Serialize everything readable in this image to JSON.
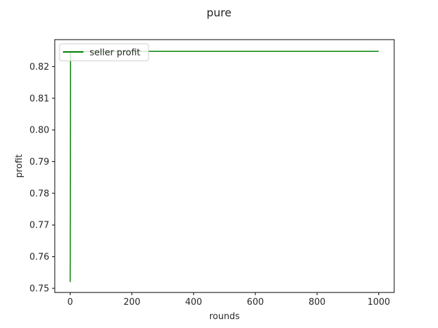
{
  "chart_data": {
    "type": "line",
    "title": "pure",
    "xlabel": "rounds",
    "ylabel": "profit",
    "xlim": [
      -50,
      1050
    ],
    "ylim": [
      0.7487,
      0.8285
    ],
    "xticks": [
      0,
      200,
      400,
      600,
      800,
      1000
    ],
    "xtick_labels": [
      "0",
      "200",
      "400",
      "600",
      "800",
      "1000"
    ],
    "yticks": [
      0.75,
      0.76,
      0.77,
      0.78,
      0.79,
      0.8,
      0.81,
      0.82
    ],
    "ytick_labels": [
      "0.75",
      "0.76",
      "0.77",
      "0.78",
      "0.79",
      "0.80",
      "0.81",
      "0.82"
    ],
    "grid": false,
    "legend_position": "top-left",
    "series": [
      {
        "name": "seller profit",
        "color": "#008000",
        "x": [
          0,
          1,
          2,
          1000
        ],
        "y": [
          0.752,
          0.8247,
          0.8248,
          0.8248
        ]
      }
    ]
  }
}
